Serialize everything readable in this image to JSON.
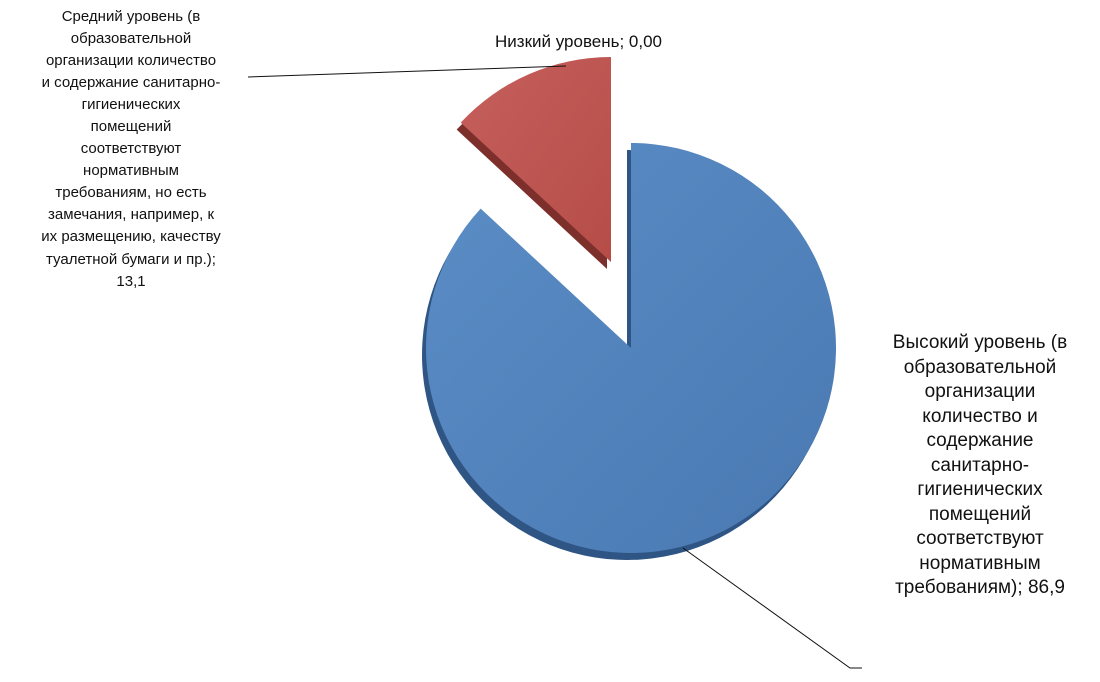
{
  "chart_data": {
    "type": "pie",
    "exploded": true,
    "style": "3d",
    "slices": [
      {
        "name": "Высокий уровень (в образовательной организации количество и содержание санитарно-гигиенических помещений соответствуют нормативным требованиям)",
        "value": 86.9,
        "color": "#4F81BD",
        "label": "Высокий уровень (в\nобразовательной\nорганизации\nколичество и\nсодержание\nсанитарно-\nгигиенических\nпомещений\nсоответствуют\nнормативным\nтребованиям); 86,9"
      },
      {
        "name": "Средний уровень (в образовательной организации количество и содержание санитарно-гигиенических помещений соответствуют нормативным требованиям, но есть замечания, например, к их размещению, качеству туалетной бумаги и пр.)",
        "value": 13.1,
        "color": "#C0504D",
        "label": "Средний уровень (в\nобразовательной\nорганизации количество\nи содержание санитарно-\nгигиенических\nпомещений\nсоответствуют\nнормативным\nтребованиям, но есть\nзамечания, например, к\nих размещению, качеству\nтуалетной бумаги и пр.);\n13,1"
      },
      {
        "name": "Низкий уровень",
        "value": 0.0,
        "color": "#9BBB59",
        "label": "Низкий уровень; 0,00"
      }
    ]
  }
}
